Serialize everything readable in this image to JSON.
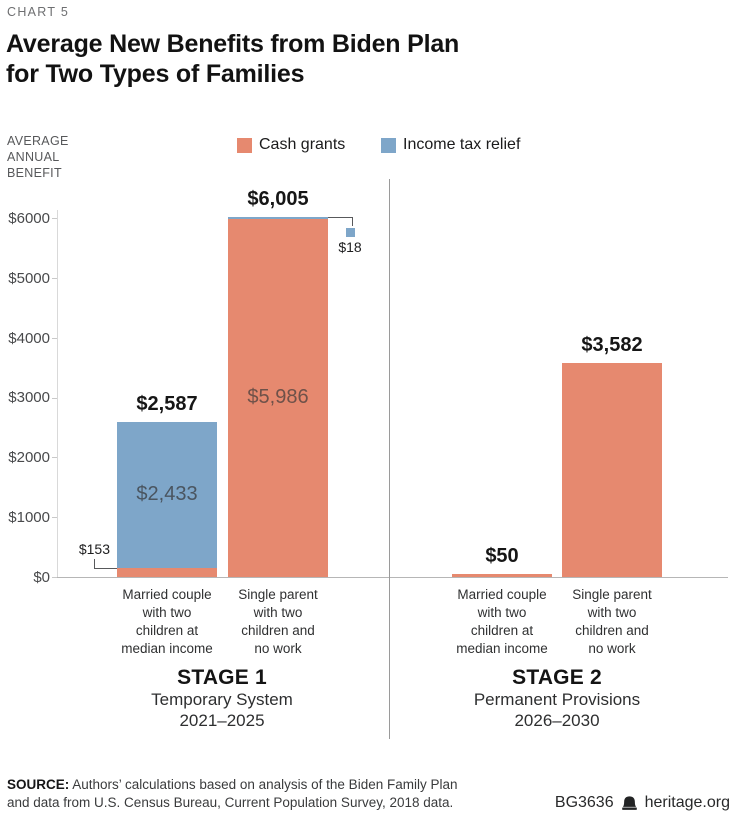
{
  "header": {
    "kicker": "CHART 5",
    "title": "Average New Benefits from Biden Plan\nfor Two Types of Families"
  },
  "legend": [
    {
      "label": "Cash grants",
      "color": "#e6896f"
    },
    {
      "label": "Income tax relief",
      "color": "#7ea6c9"
    }
  ],
  "axis": {
    "unit_label": "AVERAGE\nANNUAL\nBENEFIT",
    "ticks": [
      "$6000",
      "$5000",
      "$4000",
      "$3000",
      "$2000",
      "$1000",
      "$0"
    ]
  },
  "chart_data": {
    "type": "bar",
    "stacked": true,
    "ylim": [
      0,
      6000
    ],
    "ytick_values": [
      6000,
      5000,
      4000,
      3000,
      2000,
      1000,
      0
    ],
    "legend_position": "top",
    "grid": false,
    "colors": {
      "Cash grants": "#e6896f",
      "Income tax relief": "#7ea6c9"
    },
    "inside_label_colors": {
      "Cash grants": "#6e5149",
      "Income tax relief": "#4a5560"
    },
    "groups": [
      {
        "stage": "STAGE 1",
        "subtitle": "Temporary System",
        "years": "2021–2025",
        "bars": [
          {
            "category": "Married couple\nwith two\nchildren at\nmedian income",
            "total": 2587,
            "total_label": "$2,587",
            "segments": [
              {
                "series": "Cash grants",
                "value": 153,
                "label": "$153",
                "label_style": "callout-left"
              },
              {
                "series": "Income tax relief",
                "value": 2433,
                "label": "$2,433",
                "label_style": "inside"
              }
            ]
          },
          {
            "category": "Single parent\nwith two\nchildren and\nno work",
            "total": 6005,
            "total_label": "$6,005",
            "segments": [
              {
                "series": "Cash grants",
                "value": 5986,
                "label": "$5,986",
                "label_style": "inside"
              },
              {
                "series": "Income tax relief",
                "value": 18,
                "label": "$18",
                "label_style": "callout-right"
              }
            ]
          }
        ]
      },
      {
        "stage": "STAGE 2",
        "subtitle": "Permanent Provisions",
        "years": "2026–2030",
        "bars": [
          {
            "category": "Married couple\nwith two\nchildren at\nmedian income",
            "total": 50,
            "total_label": "$50",
            "segments": [
              {
                "series": "Cash grants",
                "value": 50,
                "label": null,
                "label_style": "none"
              }
            ]
          },
          {
            "category": "Single parent\nwith two\nchildren and\nno work",
            "total": 3582,
            "total_label": "$3,582",
            "segments": [
              {
                "series": "Cash grants",
                "value": 3582,
                "label": null,
                "label_style": "none"
              }
            ]
          }
        ]
      }
    ]
  },
  "footer": {
    "source_label": "SOURCE:",
    "source_line1": " Authors’ calculations based on analysis of the Biden Family Plan",
    "source_line2": "and data from U.S. Census Bureau, Current Population Survey, 2018 data.",
    "doc_id": "BG3636",
    "site": "heritage.org"
  }
}
